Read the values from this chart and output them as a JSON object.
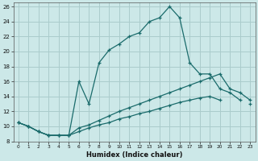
{
  "xlabel": "Humidex (Indice chaleur)",
  "bg_color": "#cce8e8",
  "grid_color": "#aacccc",
  "line_color": "#1a6b6b",
  "xlim": [
    -0.5,
    23.5
  ],
  "ylim": [
    8,
    26.5
  ],
  "xticks": [
    0,
    1,
    2,
    3,
    4,
    5,
    6,
    7,
    8,
    9,
    10,
    11,
    12,
    13,
    14,
    15,
    16,
    17,
    18,
    19,
    20,
    21,
    22,
    23
  ],
  "yticks": [
    8,
    10,
    12,
    14,
    16,
    18,
    20,
    22,
    24,
    26
  ],
  "curve_peak_x": [
    0,
    1,
    2,
    3,
    4,
    5,
    6,
    7,
    8,
    9,
    10,
    11,
    12,
    13,
    14,
    15,
    16,
    17,
    18,
    19,
    20,
    21,
    22,
    23
  ],
  "curve_peak_y": [
    10.5,
    10.0,
    9.3,
    8.8,
    8.8,
    8.8,
    16.0,
    13.0,
    18.5,
    20.2,
    21.0,
    22.0,
    22.5,
    24.0,
    24.5,
    26.0,
    24.5,
    18.5,
    17.0,
    17.0,
    15.0,
    14.5,
    13.5,
    null
  ],
  "curve_mid_x": [
    0,
    1,
    2,
    3,
    4,
    5,
    6,
    7,
    8,
    9,
    10,
    11,
    12,
    13,
    14,
    15,
    16,
    17,
    18,
    19,
    20,
    21,
    22,
    23
  ],
  "curve_mid_y": [
    10.5,
    10.0,
    9.3,
    8.8,
    8.8,
    8.8,
    9.8,
    10.2,
    10.8,
    11.4,
    12.0,
    12.5,
    13.0,
    13.5,
    14.0,
    14.5,
    15.0,
    15.5,
    16.0,
    16.5,
    17.0,
    15.0,
    14.5,
    13.5
  ],
  "curve_low_x": [
    0,
    1,
    2,
    3,
    4,
    5,
    6,
    7,
    8,
    9,
    10,
    11,
    12,
    13,
    14,
    15,
    16,
    17,
    18,
    19,
    20,
    21,
    22,
    23
  ],
  "curve_low_y": [
    10.5,
    10.0,
    9.3,
    8.8,
    8.8,
    8.8,
    9.3,
    9.8,
    10.2,
    10.5,
    11.0,
    11.3,
    11.7,
    12.0,
    12.4,
    12.8,
    13.2,
    13.5,
    13.8,
    14.0,
    13.5,
    null,
    null,
    13.0
  ]
}
